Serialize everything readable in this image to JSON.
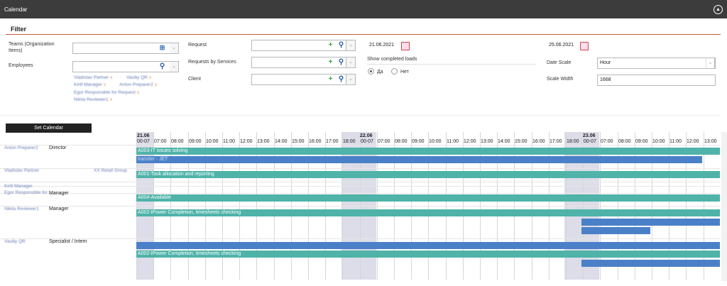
{
  "header": {
    "title": "Calendar",
    "collapse_icon": "chevron-up-circle-icon"
  },
  "filter": {
    "title": "Filter",
    "teams_label": "Teams (Organization Items)",
    "employees_label": "Employees",
    "employee_tags": [
      "Vladislav Partner",
      "Vasiliy QR",
      "Kirill Manager",
      "Anton Preparer2",
      "Egor Responsible for Request",
      "Nikita Reviewer1"
    ],
    "request_label": "Request",
    "requests_by_services_label": "Requests by Services",
    "client_label": "Client",
    "date_from": "21.06.2021",
    "date_to": "25.06.2021",
    "show_completed_label": "Show completed loads",
    "radio_yes": "Да",
    "radio_no": "Нет",
    "date_scale_label": "Date Scale",
    "date_scale_value": "Hour",
    "scale_width_label": "Scale Width",
    "scale_width_value": "1668"
  },
  "set_calendar_label": "Set Calendar",
  "gantt": {
    "days": [
      "21.06",
      "22.06",
      "23.06"
    ],
    "hours": [
      "00-07",
      "07:00",
      "08:00",
      "09:00",
      "10:00",
      "11:00",
      "12:00",
      "13:00",
      "14:00",
      "15:00",
      "16:00",
      "17:00",
      "18:00",
      "00-07",
      "07:00",
      "08:00",
      "09:00",
      "10:00",
      "11:00",
      "12:00",
      "13:00",
      "14:00",
      "15:00",
      "16:00",
      "17:00",
      "18:00",
      "00-07",
      "07:00",
      "08:00",
      "09:00",
      "10:00",
      "11:00",
      "12:00",
      "13:00"
    ],
    "rows": [
      {
        "person": "Anton Preparer2",
        "role": "Director"
      },
      {
        "person": "Vladislav Partner",
        "role": "",
        "group": "XX Retail Group"
      },
      {
        "person": "Kirill Manager",
        "role": ""
      },
      {
        "person": "Egor Responsible for Request",
        "role": "Manager"
      },
      {
        "person": "Nikita Reviewer1",
        "role": "Manager"
      },
      {
        "person": "Vasiliy QR",
        "role": "Specialist / Intern"
      }
    ],
    "bars": [
      {
        "label": "A003-IT issues solving",
        "color": "teal"
      },
      {
        "label": "A001-Task allocation and reporting",
        "color": "teal"
      },
      {
        "label": "A004-Available",
        "color": "teal"
      },
      {
        "label": "A002-IPower Completion, timesheets checking",
        "color": "teal"
      },
      {
        "label": "A002-IPower Completion, timesheets checking",
        "color": "teal"
      },
      {
        "label": "transfer - JET",
        "color": "blue"
      }
    ],
    "colors": {
      "teal": "#4fb3a9",
      "blue": "#4a80c8",
      "weekend_band": "#dcdde8"
    }
  }
}
